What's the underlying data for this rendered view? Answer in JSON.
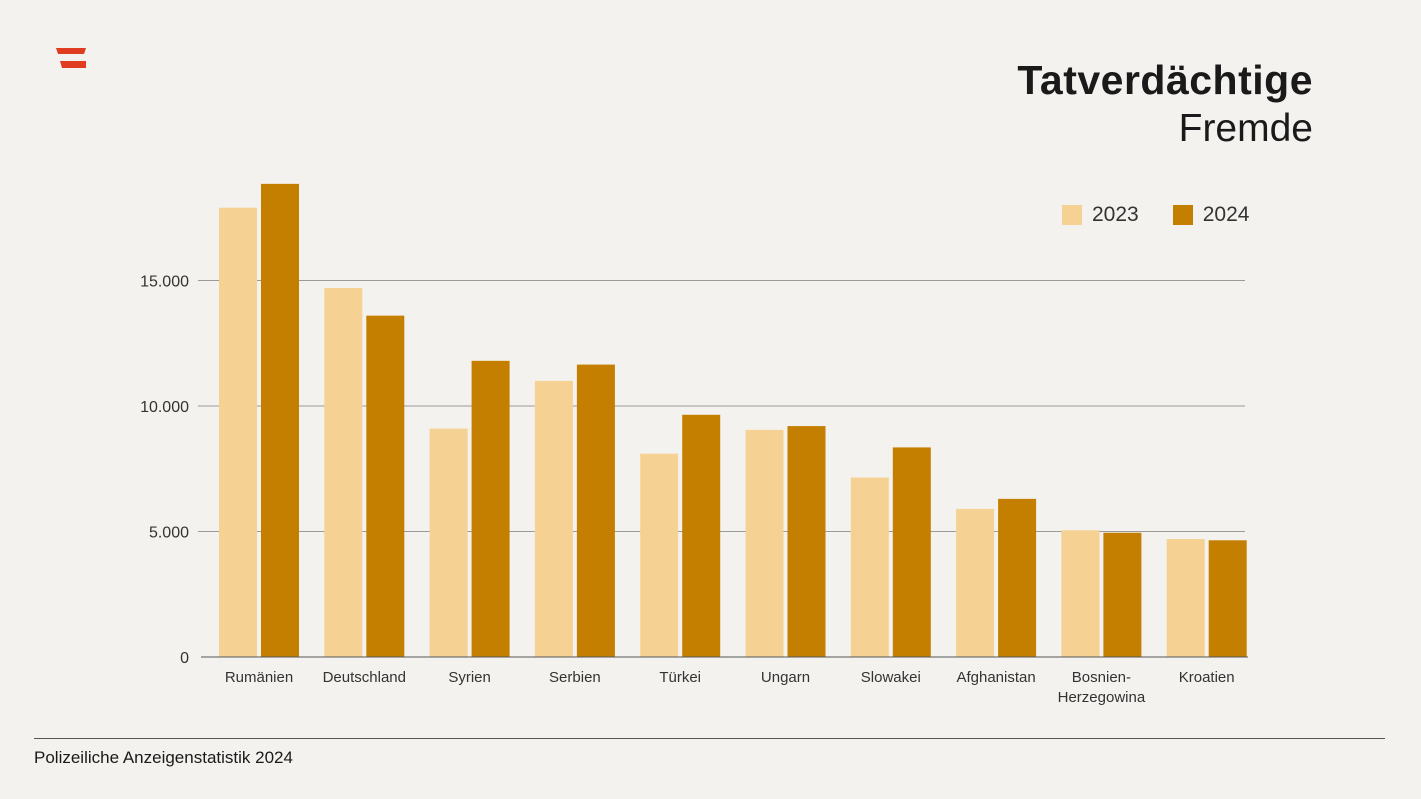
{
  "header": {
    "title": "Tatverdächtige",
    "subtitle": "Fremde",
    "logo_icon": "austria-flag-logo-icon",
    "logo_color": "#e03c1f"
  },
  "footer": {
    "source": "Polizeiliche Anzeigenstatistik 2024"
  },
  "chart_data": {
    "type": "bar",
    "title": "Tatverdächtige Fremde",
    "xlabel": "",
    "ylabel": "",
    "ylim": [
      0,
      19000
    ],
    "yticks": [
      0,
      5000,
      10000,
      15000
    ],
    "ytick_labels": [
      "0",
      "5.000",
      "10.000",
      "15.000"
    ],
    "grid": true,
    "legend_position": "top-right",
    "categories": [
      "Rumänien",
      "Deutschland",
      "Syrien",
      "Serbien",
      "Türkei",
      "Ungarn",
      "Slowakei",
      "Afghanistan",
      "Bosnien-Herzegowina",
      "Kroatien"
    ],
    "category_lines": [
      [
        "Rumänien"
      ],
      [
        "Deutschland"
      ],
      [
        "Syrien"
      ],
      [
        "Serbien"
      ],
      [
        "Türkei"
      ],
      [
        "Ungarn"
      ],
      [
        "Slowakei"
      ],
      [
        "Afghanistan"
      ],
      [
        "Bosnien-",
        "Herzegowina"
      ],
      [
        "Kroatien"
      ]
    ],
    "series": [
      {
        "name": "2023",
        "color": "#f5d293",
        "values": [
          17900,
          14700,
          9100,
          11000,
          8100,
          9050,
          7150,
          5900,
          5050,
          4700
        ]
      },
      {
        "name": "2024",
        "color": "#c47f00",
        "values": [
          18850,
          13600,
          11800,
          11650,
          9650,
          9200,
          8350,
          6300,
          4950,
          4650
        ]
      }
    ]
  }
}
